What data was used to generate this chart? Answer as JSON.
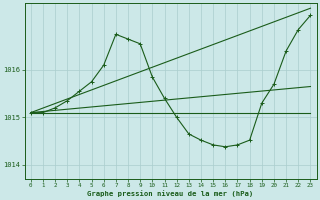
{
  "title": "Graphe pression niveau de la mer (hPa)",
  "bg_color": "#cce8e8",
  "line_color": "#1a5c1a",
  "grid_color": "#aacece",
  "ylim": [
    1013.7,
    1017.4
  ],
  "yticks": [
    1014,
    1015,
    1016
  ],
  "xlim": [
    -0.5,
    23.5
  ],
  "xticks": [
    0,
    1,
    2,
    3,
    4,
    5,
    6,
    7,
    8,
    9,
    10,
    11,
    12,
    13,
    14,
    15,
    16,
    17,
    18,
    19,
    20,
    21,
    22,
    23
  ],
  "series": [
    {
      "x": [
        0,
        23
      ],
      "y": [
        1015.1,
        1015.1
      ],
      "marker": null,
      "lw": 0.8
    },
    {
      "x": [
        0,
        23
      ],
      "y": [
        1015.1,
        1015.65
      ],
      "marker": null,
      "lw": 0.8
    },
    {
      "x": [
        0,
        23
      ],
      "y": [
        1015.1,
        1017.3
      ],
      "marker": null,
      "lw": 0.8
    },
    {
      "x": [
        0,
        1,
        2,
        3,
        4,
        5,
        6,
        7,
        8,
        9,
        10,
        11,
        12,
        13,
        14,
        15,
        16,
        17,
        18,
        19,
        20,
        21,
        22,
        23
      ],
      "y": [
        1015.1,
        1015.1,
        1015.2,
        1015.35,
        1015.55,
        1015.75,
        1016.1,
        1016.75,
        1016.65,
        1016.55,
        1015.85,
        1015.4,
        1015.0,
        1014.65,
        1014.52,
        1014.42,
        1014.38,
        1014.42,
        1014.52,
        1015.3,
        1015.7,
        1016.4,
        1016.85,
        1017.15
      ],
      "marker": "+",
      "lw": 0.8
    }
  ]
}
